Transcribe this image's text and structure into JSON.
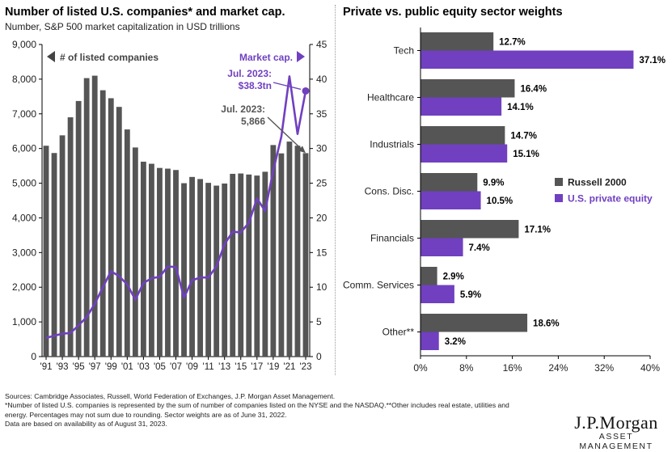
{
  "left": {
    "title": "Number of listed U.S. companies* and market cap.",
    "subtitle": "Number, S&P 500 market capitalization in USD trillions",
    "legend_companies": "# of listed companies",
    "legend_market": "Market cap.",
    "annotation_market": [
      "Jul. 2023:",
      "$38.3tn"
    ],
    "annotation_companies": [
      "Jul. 2023:",
      "5,866"
    ]
  },
  "right": {
    "title": "Private vs. public equity sector weights",
    "legend": [
      "Russell 2000",
      "U.S. private equity"
    ]
  },
  "footer": {
    "lines": [
      "Sources: Cambridge Associates, Russell, World Federation of Exchanges, J.P. Morgan Asset Management.",
      "*Number of listed U.S. companies is represented by the sum of number of companies listed on the NYSE and the NASDAQ.**Other includes real estate, utilities and",
      "energy. Percentages may not sum due to rounding. Sector weights are as of June 31, 2022.",
      "Data are based on availability as of August 31, 2023."
    ]
  },
  "logo": {
    "main": "J.P.Morgan",
    "sub": "ASSET MANAGEMENT"
  },
  "colors": {
    "bar": "#555555",
    "purple": "#7040C0",
    "axis": "#000000"
  },
  "chart_data": [
    {
      "type": "bar",
      "title": "Number of listed U.S. companies* and market cap.",
      "subtitle": "Number, S&P 500 market capitalization in USD trillions",
      "years": [
        1991,
        1992,
        1993,
        1994,
        1995,
        1996,
        1997,
        1998,
        1999,
        2000,
        2001,
        2002,
        2003,
        2004,
        2005,
        2006,
        2007,
        2008,
        2009,
        2010,
        2011,
        2012,
        2013,
        2014,
        2015,
        2016,
        2017,
        2018,
        2019,
        2020,
        2021,
        2022,
        2023
      ],
      "x_tick_labels": [
        "'91",
        "'93",
        "'95",
        "'97",
        "'99",
        "'01",
        "'03",
        "'05",
        "'07",
        "'09",
        "'11",
        "'13",
        "'15",
        "'17",
        "'19",
        "'21",
        "'23"
      ],
      "series": [
        {
          "name": "# of listed companies",
          "axis": "left",
          "values": [
            6080,
            5870,
            6380,
            6900,
            7370,
            8030,
            8100,
            7680,
            7450,
            7200,
            6550,
            6030,
            5620,
            5560,
            5440,
            5420,
            5380,
            5000,
            5180,
            5120,
            5010,
            4930,
            4990,
            5270,
            5280,
            5250,
            5220,
            5330,
            6100,
            5860,
            6200,
            6080,
            5866
          ]
        },
        {
          "name": "Market cap.",
          "axis": "right",
          "type": "line",
          "values": [
            2.7,
            3.0,
            3.3,
            3.4,
            4.5,
            5.7,
            7.6,
            10.0,
            12.3,
            11.6,
            10.4,
            8.2,
            10.6,
            11.3,
            11.5,
            13.0,
            12.9,
            8.5,
            11.0,
            11.4,
            11.4,
            13.0,
            16.2,
            18.0,
            17.9,
            19.3,
            22.8,
            21.0,
            26.8,
            31.7,
            40.4,
            32.1,
            38.3
          ]
        }
      ],
      "yleft": {
        "min": 0,
        "max": 9000,
        "ticks": [
          0,
          1000,
          2000,
          3000,
          4000,
          5000,
          6000,
          7000,
          8000,
          9000
        ]
      },
      "yright": {
        "min": 0,
        "max": 45,
        "ticks": [
          0,
          5,
          10,
          15,
          20,
          25,
          30,
          35,
          40,
          45
        ]
      }
    },
    {
      "type": "bar",
      "orientation": "horizontal",
      "title": "Private vs. public equity sector weights",
      "categories": [
        "Tech",
        "Healthcare",
        "Industrials",
        "Cons. Disc.",
        "Financials",
        "Comm. Services",
        "Other**"
      ],
      "series": [
        {
          "name": "Russell 2000",
          "values": [
            12.7,
            16.4,
            14.7,
            9.9,
            17.1,
            2.9,
            18.6
          ]
        },
        {
          "name": "U.S. private equity",
          "values": [
            37.1,
            14.1,
            15.1,
            10.5,
            7.4,
            5.9,
            3.2
          ]
        }
      ],
      "xlim": [
        0,
        40
      ],
      "x_ticks": [
        "0%",
        "8%",
        "16%",
        "24%",
        "32%",
        "40%"
      ]
    }
  ]
}
